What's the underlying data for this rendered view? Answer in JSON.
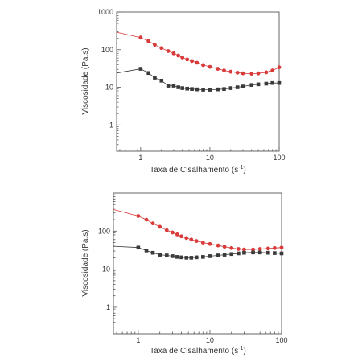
{
  "chart_data": [
    {
      "type": "line",
      "x_scale": "log",
      "y_scale": "log",
      "xlabel_main": "Taxa de Cisalhamento (s",
      "xlabel_sup": "-1",
      "xlabel_end": ")",
      "ylabel": "Viscosidade (Pa.s)",
      "xlim": [
        0.45,
        100
      ],
      "ylim": [
        0.2,
        1000
      ],
      "x_ticks": [
        1,
        10,
        100
      ],
      "x_tick_labels": [
        "1",
        "10",
        "100"
      ],
      "y_ticks": [
        1,
        10,
        100,
        1000
      ],
      "y_tick_labels": [
        "1",
        "10",
        "100",
        "1000"
      ],
      "grid": false,
      "series": [
        {
          "color": "#d93a3a",
          "marker": "circle",
          "x": [
            0.45,
            1.0,
            1.3,
            1.6,
            2.0,
            2.5,
            3.0,
            3.5,
            4.0,
            4.7,
            5.5,
            6.5,
            8,
            10,
            13,
            16,
            20,
            25,
            30,
            40,
            50,
            65,
            80,
            100
          ],
          "y": [
            290,
            210,
            170,
            135,
            110,
            92,
            80,
            70,
            62,
            55,
            50,
            45,
            39,
            35,
            31,
            28,
            26,
            24.5,
            23.5,
            23,
            23.5,
            25,
            28,
            34
          ]
        },
        {
          "color": "#3a3a3a",
          "marker": "square",
          "x": [
            0.45,
            1.0,
            1.3,
            1.6,
            2.0,
            2.5,
            3.0,
            3.5,
            4.0,
            4.7,
            5.5,
            6.5,
            8,
            10,
            13,
            16,
            20,
            25,
            30,
            40,
            50,
            65,
            80,
            100
          ],
          "y": [
            24,
            31,
            24,
            18,
            15,
            11,
            11,
            10,
            9.5,
            9.2,
            9.0,
            8.8,
            8.6,
            8.6,
            8.8,
            9.0,
            9.5,
            10,
            10.5,
            11.5,
            12,
            12.5,
            13,
            13
          ]
        }
      ]
    },
    {
      "type": "line",
      "x_scale": "log",
      "y_scale": "log",
      "xlabel_main": "Taxa de Cisalhamento (s",
      "xlabel_sup": "-1",
      "xlabel_end": ")",
      "ylabel": "Viscosidade (Pa.s)",
      "xlim": [
        0.45,
        100
      ],
      "ylim": [
        0.2,
        1000
      ],
      "x_ticks": [
        1,
        10,
        100
      ],
      "x_tick_labels": [
        "1",
        "10",
        "100"
      ],
      "y_ticks": [
        1,
        10,
        100
      ],
      "y_tick_labels": [
        "1",
        "10",
        "100"
      ],
      "grid": false,
      "series": [
        {
          "color": "#d93a3a",
          "marker": "circle",
          "x": [
            0.45,
            1.0,
            1.3,
            1.6,
            2.0,
            2.5,
            3.0,
            3.5,
            4.0,
            4.7,
            5.5,
            6.5,
            8,
            10,
            13,
            16,
            20,
            25,
            30,
            40,
            50,
            65,
            80,
            100
          ],
          "y": [
            370,
            250,
            200,
            160,
            130,
            105,
            92,
            82,
            73,
            66,
            60,
            55,
            50,
            46,
            42,
            39,
            36,
            34,
            33,
            33,
            34,
            35,
            36,
            37
          ]
        },
        {
          "color": "#3a3a3a",
          "marker": "square",
          "x": [
            0.45,
            1.0,
            1.3,
            1.6,
            2.0,
            2.5,
            3.0,
            3.5,
            4.0,
            4.7,
            5.5,
            6.5,
            8,
            10,
            13,
            16,
            20,
            25,
            30,
            40,
            50,
            65,
            80,
            100
          ],
          "y": [
            40,
            37,
            31,
            27,
            24,
            23,
            22,
            21,
            20.5,
            20,
            20,
            20.5,
            21,
            22,
            23,
            24,
            25,
            26,
            27,
            27.5,
            27.5,
            27,
            26.5,
            26
          ]
        }
      ]
    }
  ]
}
